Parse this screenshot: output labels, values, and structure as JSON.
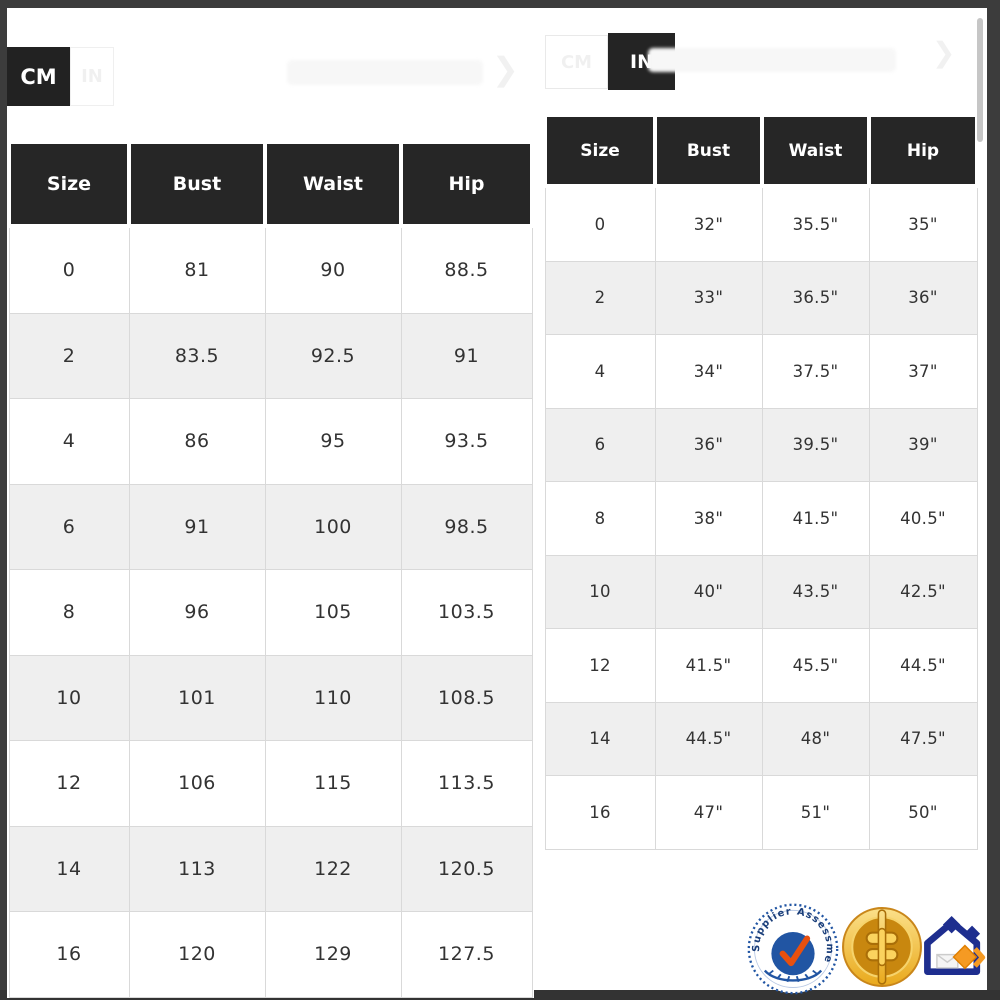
{
  "left_panel": {
    "toggle": {
      "cm_label": "CM",
      "in_label": "IN",
      "selected": "CM"
    },
    "table": {
      "headers": [
        "Size",
        "Bust",
        "Waist",
        "Hip"
      ],
      "rows": [
        [
          "0",
          "81",
          "90",
          "88.5"
        ],
        [
          "2",
          "83.5",
          "92.5",
          "91"
        ],
        [
          "4",
          "86",
          "95",
          "93.5"
        ],
        [
          "6",
          "91",
          "100",
          "98.5"
        ],
        [
          "8",
          "96",
          "105",
          "103.5"
        ],
        [
          "10",
          "101",
          "110",
          "108.5"
        ],
        [
          "12",
          "106",
          "115",
          "113.5"
        ],
        [
          "14",
          "113",
          "122",
          "120.5"
        ],
        [
          "16",
          "120",
          "129",
          "127.5"
        ]
      ]
    }
  },
  "right_panel": {
    "toggle": {
      "cm_label": "CM",
      "in_label": "IN",
      "selected": "IN"
    },
    "table": {
      "headers": [
        "Size",
        "Bust",
        "Waist",
        "Hip"
      ],
      "rows": [
        [
          "0",
          "32\"",
          "35.5\"",
          "35\""
        ],
        [
          "2",
          "33\"",
          "36.5\"",
          "36\""
        ],
        [
          "4",
          "34\"",
          "37.5\"",
          "37\""
        ],
        [
          "6",
          "36\"",
          "39.5\"",
          "39\""
        ],
        [
          "8",
          "38\"",
          "41.5\"",
          "40.5\""
        ],
        [
          "10",
          "40\"",
          "43.5\"",
          "42.5\""
        ],
        [
          "12",
          "41.5\"",
          "45.5\"",
          "44.5\""
        ],
        [
          "14",
          "44.5\"",
          "48\"",
          "47.5\""
        ],
        [
          "16",
          "47\"",
          "51\"",
          "50\""
        ]
      ]
    }
  },
  "badges": {
    "supplier_assessment_label": "Supplier Assessment"
  },
  "icons": {
    "chevron_right": "❯"
  },
  "colors": {
    "header_bg": "#262626",
    "row_alt": "#efefef",
    "cell_border": "#d9d9d9",
    "frame": "#3c3c3c",
    "badge_blue": "#2155a3",
    "check_orange": "#e8500f",
    "coin_gold": "#e9a91c",
    "house_navy": "#1e2e8f",
    "house_orange": "#f59a23"
  }
}
